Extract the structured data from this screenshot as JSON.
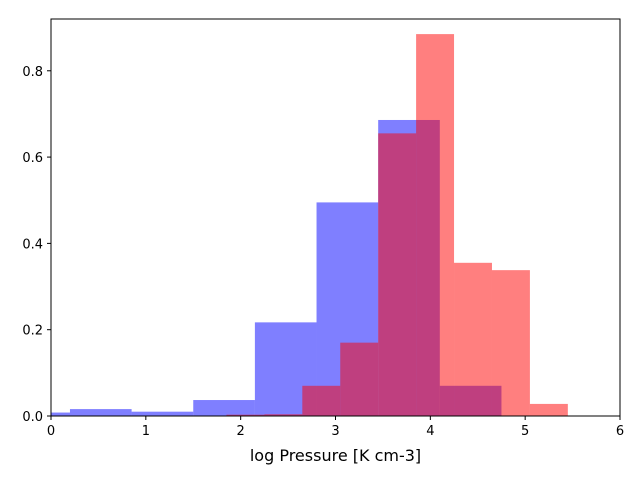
{
  "chart_data": {
    "type": "bar",
    "title": "",
    "xlabel": "log Pressure [K cm-3]",
    "ylabel": "",
    "xlim": [
      0,
      6
    ],
    "ylim": [
      0,
      0.92
    ],
    "x_ticks": [
      "0",
      "1",
      "2",
      "3",
      "4",
      "5",
      "6"
    ],
    "y_ticks": [
      "0.0",
      "0.2",
      "0.4",
      "0.6",
      "0.8"
    ],
    "grid": false,
    "legend": "none",
    "series": [
      {
        "color": "#0000ff",
        "opacity": 0.5,
        "bins": [
          {
            "x0": 0.0,
            "x1": 0.2,
            "value": 0.008
          },
          {
            "x0": 0.2,
            "x1": 0.85,
            "value": 0.016
          },
          {
            "x0": 0.85,
            "x1": 1.5,
            "value": 0.01
          },
          {
            "x0": 1.5,
            "x1": 2.15,
            "value": 0.037
          },
          {
            "x0": 2.15,
            "x1": 2.8,
            "value": 0.217
          },
          {
            "x0": 2.8,
            "x1": 3.45,
            "value": 0.495
          },
          {
            "x0": 3.45,
            "x1": 4.1,
            "value": 0.686
          },
          {
            "x0": 4.1,
            "x1": 4.75,
            "value": 0.07
          }
        ]
      },
      {
        "color": "#ff0000",
        "opacity": 0.5,
        "bins": [
          {
            "x0": 1.85,
            "x1": 2.25,
            "value": 0.003
          },
          {
            "x0": 2.25,
            "x1": 2.65,
            "value": 0.004
          },
          {
            "x0": 2.65,
            "x1": 3.05,
            "value": 0.07
          },
          {
            "x0": 3.05,
            "x1": 3.45,
            "value": 0.17
          },
          {
            "x0": 3.45,
            "x1": 3.85,
            "value": 0.655
          },
          {
            "x0": 3.85,
            "x1": 4.25,
            "value": 0.885
          },
          {
            "x0": 4.25,
            "x1": 4.65,
            "value": 0.355
          },
          {
            "x0": 4.65,
            "x1": 5.05,
            "value": 0.338
          },
          {
            "x0": 5.05,
            "x1": 5.45,
            "value": 0.028
          }
        ]
      }
    ]
  }
}
